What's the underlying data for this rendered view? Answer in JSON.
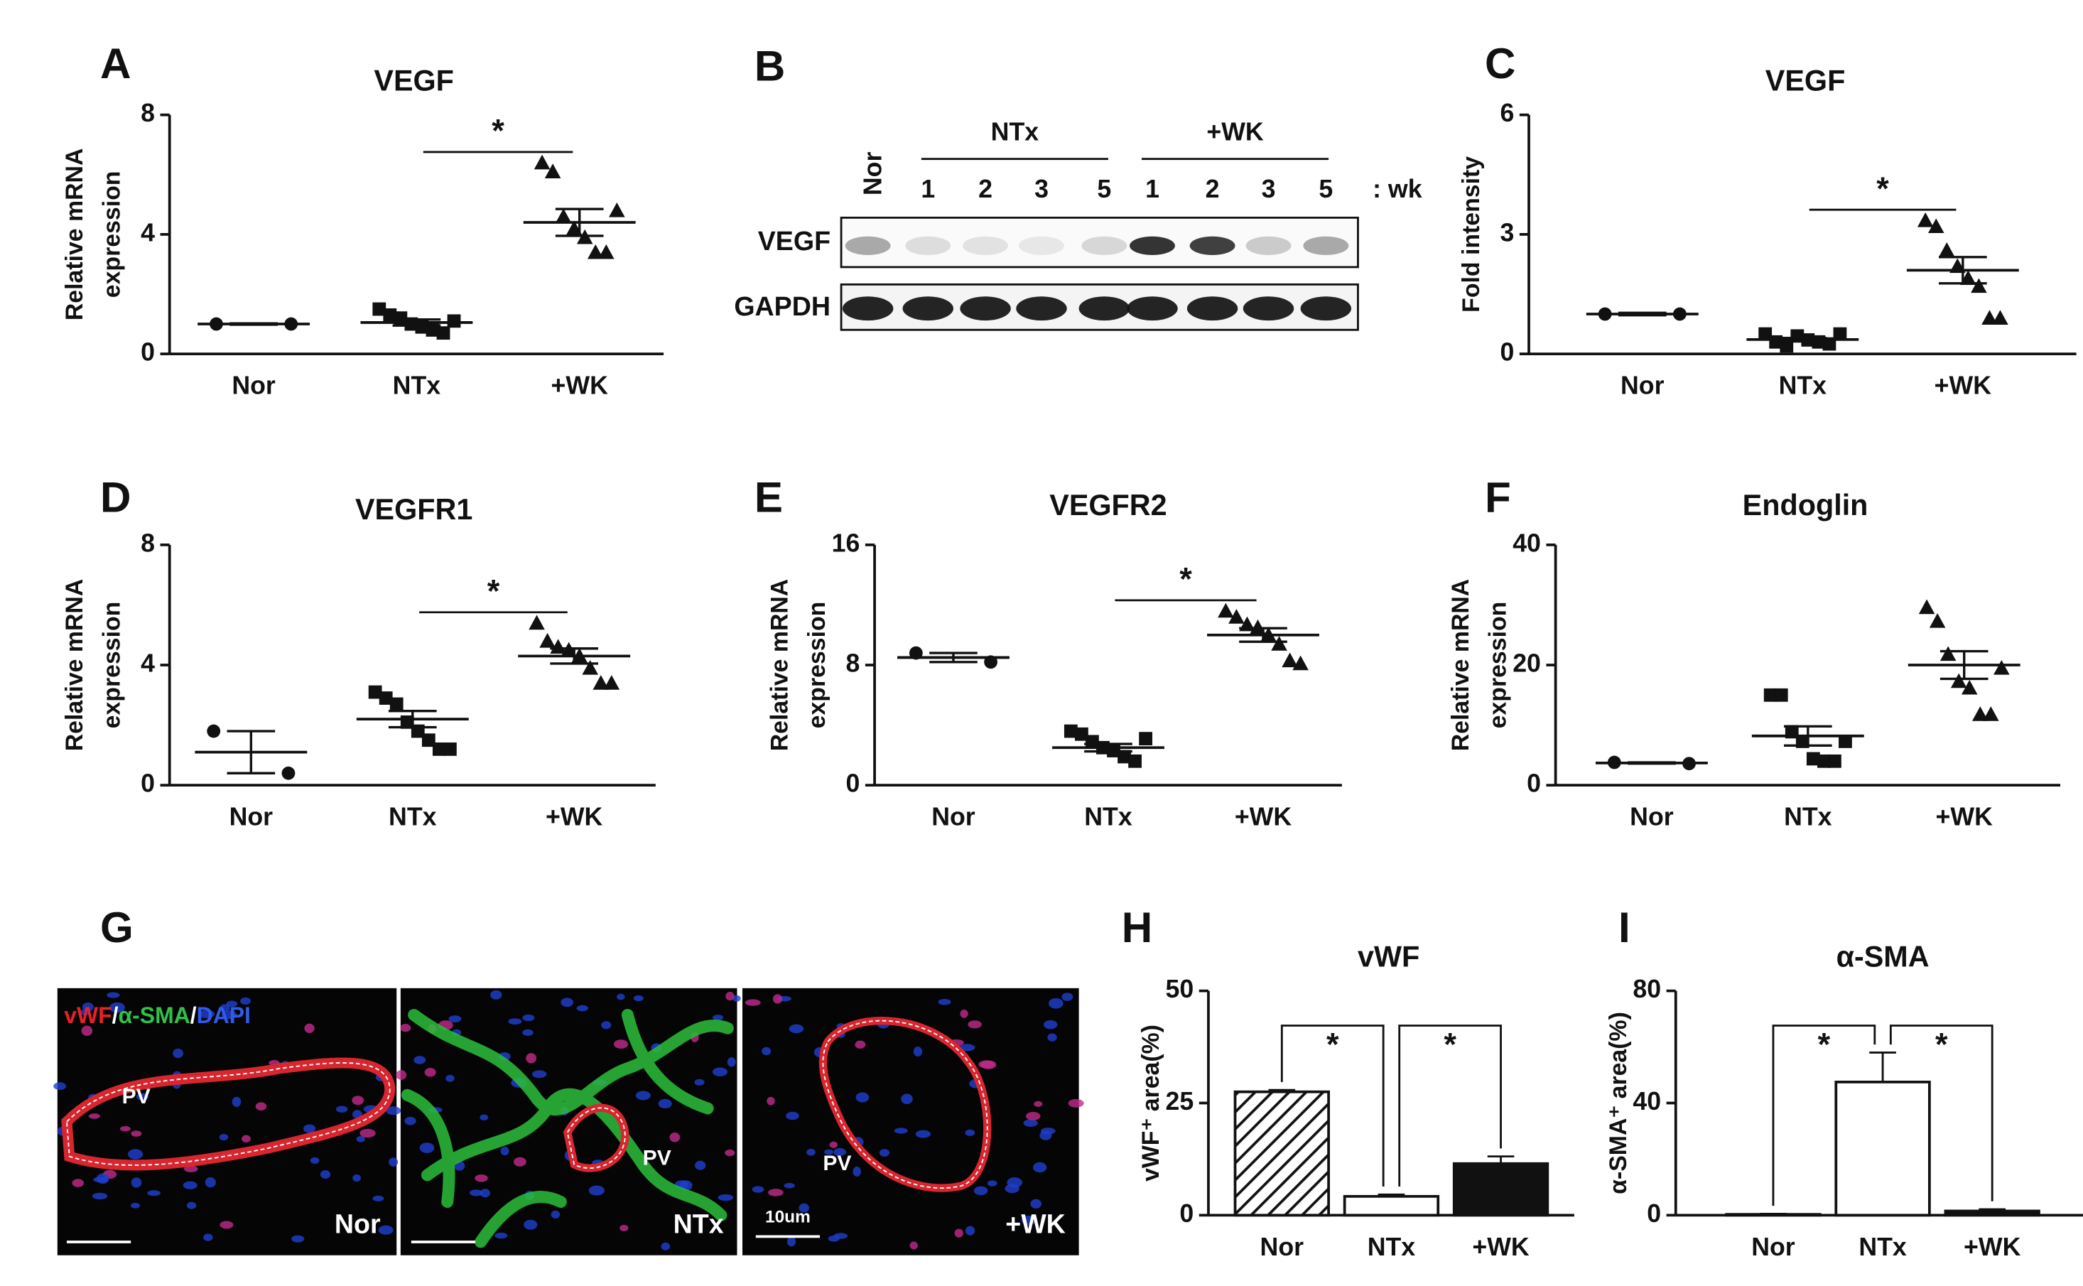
{
  "chart_data": [
    {
      "panel": "A",
      "type": "dotplot",
      "title": "VEGF",
      "ylabel": [
        "Relative mRNA",
        "expression"
      ],
      "categories": [
        "Nor",
        "NTx",
        "+WK"
      ],
      "ylim": [
        0,
        8
      ],
      "yticks": [
        0,
        4,
        8
      ],
      "groups": [
        {
          "marker": "circle",
          "values": [
            1.0,
            1.0
          ],
          "mean": 1.0,
          "sem": 0.02
        },
        {
          "marker": "square",
          "values": [
            1.5,
            1.3,
            1.2,
            1.0,
            0.9,
            0.8,
            0.7,
            1.1
          ],
          "mean": 1.05,
          "sem": 0.1
        },
        {
          "marker": "triangle",
          "values": [
            6.4,
            6.1,
            4.6,
            4.2,
            3.9,
            3.4,
            3.4,
            4.8
          ],
          "mean": 4.4,
          "sem": 0.45
        }
      ],
      "significance": [
        {
          "from": 1,
          "to": 2,
          "label": "*"
        }
      ]
    },
    {
      "panel": "C",
      "type": "dotplot",
      "title": "VEGF",
      "ylabel": [
        "Fold intensity"
      ],
      "categories": [
        "Nor",
        "NTx",
        "+WK"
      ],
      "ylim": [
        0,
        6
      ],
      "yticks": [
        0,
        3,
        6
      ],
      "groups": [
        {
          "marker": "circle",
          "values": [
            1.0,
            1.0
          ],
          "mean": 1.0,
          "sem": 0.03
        },
        {
          "marker": "square",
          "values": [
            0.5,
            0.3,
            0.2,
            0.45,
            0.35,
            0.3,
            0.25,
            0.5
          ],
          "mean": 0.36,
          "sem": 0.04
        },
        {
          "marker": "triangle",
          "values": [
            3.35,
            3.2,
            2.6,
            2.2,
            1.9,
            1.7,
            0.9,
            0.9
          ],
          "mean": 2.1,
          "sem": 0.33
        }
      ],
      "significance": [
        {
          "from": 1,
          "to": 2,
          "label": "*"
        }
      ]
    },
    {
      "panel": "D",
      "type": "dotplot",
      "title": "VEGFR1",
      "ylabel": [
        "Relative mRNA",
        "expression"
      ],
      "categories": [
        "Nor",
        "NTx",
        "+WK"
      ],
      "ylim": [
        0,
        8
      ],
      "yticks": [
        0,
        4,
        8
      ],
      "groups": [
        {
          "marker": "circle",
          "values": [
            1.8,
            0.4
          ],
          "mean": 1.1,
          "sem": 0.7
        },
        {
          "marker": "square",
          "values": [
            3.1,
            2.9,
            2.7,
            2.1,
            1.8,
            1.5,
            1.2,
            1.2
          ],
          "mean": 2.2,
          "sem": 0.27
        },
        {
          "marker": "triangle",
          "values": [
            5.4,
            4.8,
            4.6,
            4.5,
            4.3,
            3.9,
            3.4,
            3.4
          ],
          "mean": 4.3,
          "sem": 0.25
        }
      ],
      "significance": [
        {
          "from": 1,
          "to": 2,
          "label": "*"
        }
      ]
    },
    {
      "panel": "E",
      "type": "dotplot",
      "title": "VEGFR2",
      "ylabel": [
        "Relative mRNA",
        "expression"
      ],
      "categories": [
        "Nor",
        "NTx",
        "+WK"
      ],
      "ylim": [
        0,
        16
      ],
      "yticks": [
        0,
        8,
        16
      ],
      "groups": [
        {
          "marker": "circle",
          "values": [
            8.8,
            8.2
          ],
          "mean": 8.5,
          "sem": 0.3
        },
        {
          "marker": "square",
          "values": [
            3.6,
            3.4,
            2.9,
            2.5,
            2.3,
            1.9,
            1.6,
            3.1
          ],
          "mean": 2.5,
          "sem": 0.25
        },
        {
          "marker": "triangle",
          "values": [
            11.6,
            11.2,
            10.7,
            10.5,
            10.0,
            9.4,
            8.3,
            8.1
          ],
          "mean": 10.0,
          "sem": 0.45
        }
      ],
      "significance": [
        {
          "from": 1,
          "to": 2,
          "label": "*"
        }
      ]
    },
    {
      "panel": "F",
      "type": "dotplot",
      "title": "Endoglin",
      "ylabel": [
        "Relative mRNA",
        "expression"
      ],
      "categories": [
        "Nor",
        "NTx",
        "+WK"
      ],
      "ylim": [
        0,
        40
      ],
      "yticks": [
        0,
        20,
        40
      ],
      "groups": [
        {
          "marker": "circle",
          "values": [
            3.8,
            3.6
          ],
          "mean": 3.7,
          "sem": 0.1
        },
        {
          "marker": "square",
          "values": [
            15,
            15,
            8.9,
            7.3,
            4.4,
            4.0,
            4.0,
            7.3
          ],
          "mean": 8.2,
          "sem": 1.6
        },
        {
          "marker": "triangle",
          "values": [
            29.6,
            27.3,
            21.8,
            17.3,
            16.2,
            11.8,
            11.8,
            19.5
          ],
          "mean": 20.0,
          "sem": 2.3
        }
      ],
      "significance": []
    },
    {
      "panel": "H",
      "type": "bar",
      "title": "vWF",
      "ylabel": [
        "vWF⁺ area(%)"
      ],
      "categories": [
        "Nor",
        "NTx",
        "+WK"
      ],
      "ylim": [
        0,
        50
      ],
      "yticks": [
        0,
        25,
        50
      ],
      "values": [
        27.5,
        4.2,
        11.5
      ],
      "errors": [
        0.4,
        0.4,
        1.6
      ],
      "fills": [
        "hatch",
        "white",
        "black"
      ],
      "significance": [
        {
          "from": 0,
          "to": 1,
          "label": "*"
        },
        {
          "from": 1,
          "to": 2,
          "label": "*"
        }
      ]
    },
    {
      "panel": "I",
      "type": "bar",
      "title": "α-SMA",
      "ylabel": [
        "α-SMA⁺ area(%)"
      ],
      "categories": [
        "Nor",
        "NTx",
        "+WK"
      ],
      "ylim": [
        0,
        80
      ],
      "yticks": [
        0,
        40,
        80
      ],
      "values": [
        0.3,
        47.5,
        1.5
      ],
      "errors": [
        0.2,
        10.5,
        0.6
      ],
      "fills": [
        "white",
        "white",
        "black"
      ],
      "significance": [
        {
          "from": 0,
          "to": 1,
          "label": "*"
        },
        {
          "from": 1,
          "to": 2,
          "label": "*"
        }
      ]
    }
  ],
  "blot": {
    "panel": "B",
    "control": "Nor",
    "groups": [
      {
        "label": "NTx",
        "weeks": [
          1,
          2,
          3,
          5
        ]
      },
      {
        "label": "+WK",
        "weeks": [
          1,
          2,
          3,
          5
        ]
      }
    ],
    "unit": ": wk",
    "rows": [
      "VEGF",
      "GAPDH"
    ]
  },
  "micrograph": {
    "panel": "G",
    "stain": [
      {
        "text": "vWF",
        "color": "#e8202a"
      },
      {
        "text": "/",
        "color": "#ffffff"
      },
      {
        "text": "α-SMA",
        "color": "#2fc24a"
      },
      {
        "text": "/",
        "color": "#ffffff"
      },
      {
        "text": "DAPI",
        "color": "#2f5be8"
      }
    ],
    "images": [
      {
        "label": "Nor",
        "vessel": "PV"
      },
      {
        "label": "NTx",
        "vessel": "PV"
      },
      {
        "label": "+WK",
        "vessel": "PV"
      }
    ],
    "scale_bar": "10um"
  }
}
